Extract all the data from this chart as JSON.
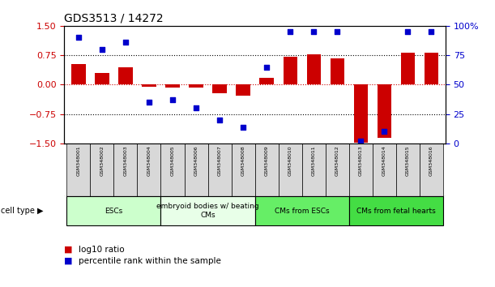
{
  "title": "GDS3513 / 14272",
  "samples": [
    "GSM348001",
    "GSM348002",
    "GSM348003",
    "GSM348004",
    "GSM348005",
    "GSM348006",
    "GSM348007",
    "GSM348008",
    "GSM348009",
    "GSM348010",
    "GSM348011",
    "GSM348012",
    "GSM348013",
    "GSM348014",
    "GSM348015",
    "GSM348016"
  ],
  "log10_ratio": [
    0.52,
    0.3,
    0.45,
    -0.05,
    -0.07,
    -0.07,
    -0.22,
    -0.28,
    0.18,
    0.72,
    0.78,
    0.68,
    -1.48,
    -1.35,
    0.82,
    0.82
  ],
  "percentile_rank": [
    90,
    80,
    86,
    35,
    37,
    30,
    20,
    14,
    65,
    95,
    95,
    95,
    2,
    10,
    95,
    95
  ],
  "bar_color": "#cc0000",
  "dot_color": "#0000cc",
  "ylim": [
    -1.5,
    1.5
  ],
  "y2lim": [
    0,
    100
  ],
  "yticks_left": [
    -1.5,
    -0.75,
    0,
    0.75,
    1.5
  ],
  "yticks_right": [
    0,
    25,
    50,
    75,
    100
  ],
  "ytick_labels_right": [
    "0",
    "25",
    "50",
    "75",
    "100%"
  ],
  "cell_type_groups": [
    {
      "label": "ESCs",
      "start": 0,
      "end": 3,
      "color": "#ccffcc"
    },
    {
      "label": "embryoid bodies w/ beating\nCMs",
      "start": 4,
      "end": 7,
      "color": "#e8ffe8"
    },
    {
      "label": "CMs from ESCs",
      "start": 8,
      "end": 11,
      "color": "#66ee66"
    },
    {
      "label": "CMs from fetal hearts",
      "start": 12,
      "end": 15,
      "color": "#44dd44"
    }
  ],
  "legend_items": [
    {
      "color": "#cc0000",
      "label": "log10 ratio"
    },
    {
      "color": "#0000cc",
      "label": "percentile rank within the sample"
    }
  ],
  "cell_type_label": "cell type"
}
